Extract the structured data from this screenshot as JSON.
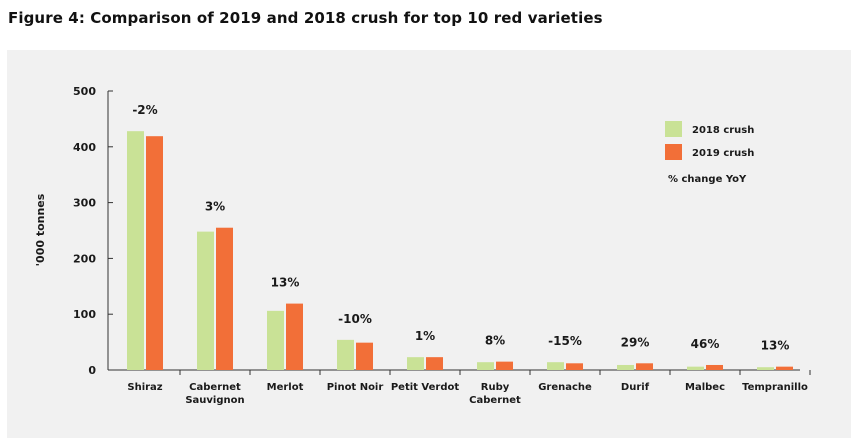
{
  "figure_title": "Figure 4: Comparison of 2019 and 2018 crush for top 10 red varieties",
  "colors": {
    "series_2018": "#c9e296",
    "series_2019": "#f26f38",
    "panel": "#f1f1f1"
  },
  "chart_data": {
    "type": "bar",
    "title": "",
    "xlabel": "",
    "ylabel": "'000 tonnes",
    "ylim": [
      0,
      500
    ],
    "yticks": [
      0,
      100,
      200,
      300,
      400,
      500
    ],
    "grid": false,
    "legend_position": "top-right",
    "categories": [
      [
        "Shiraz"
      ],
      [
        "Cabernet",
        "Sauvignon"
      ],
      [
        "Merlot"
      ],
      [
        "Pinot Noir"
      ],
      [
        "Petit Verdot"
      ],
      [
        "Ruby",
        "Cabernet"
      ],
      [
        "Grenache"
      ],
      [
        "Durif"
      ],
      [
        "Malbec"
      ],
      [
        "Tempranillo"
      ]
    ],
    "series": [
      {
        "name": "2018 crush",
        "values": [
          428,
          248,
          106,
          54,
          23,
          14,
          14,
          9,
          6,
          5
        ]
      },
      {
        "name": "2019 crush",
        "values": [
          419,
          255,
          119,
          49,
          23,
          15,
          12,
          12,
          9,
          6
        ]
      }
    ],
    "annotations": [
      "-2%",
      "3%",
      "13%",
      "-10%",
      "1%",
      "8%",
      "-15%",
      "29%",
      "46%",
      "13%"
    ],
    "annotation_legend": "% change YoY"
  }
}
